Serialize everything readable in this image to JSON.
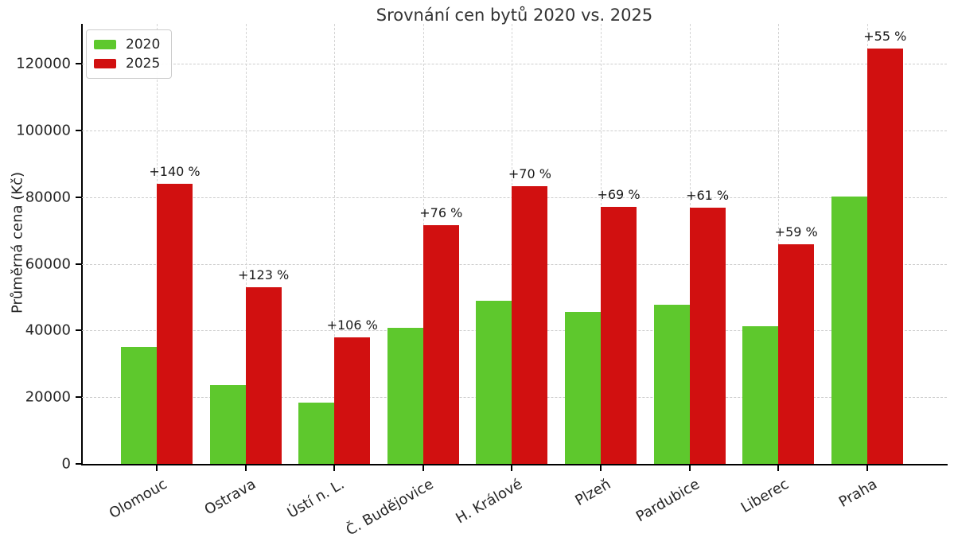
{
  "chart_data": {
    "type": "bar",
    "title": "Srovnání cen bytů 2020 vs. 2025",
    "ylabel": "Průměrná cena (Kč)",
    "xlabel": "",
    "categories": [
      "Olomouc",
      "Ostrava",
      "Ústí n. L.",
      "Č. Budějovice",
      "H. Králové",
      "Plzeň",
      "Pardubice",
      "Liberec",
      "Praha"
    ],
    "series": [
      {
        "name": "2020",
        "color": "#5ec82d",
        "values": [
          35000,
          23700,
          18400,
          40700,
          49000,
          45600,
          47700,
          41400,
          80300
        ]
      },
      {
        "name": "2025",
        "color": "#d11010",
        "values": [
          84000,
          52900,
          37900,
          71600,
          83300,
          77000,
          76800,
          65800,
          124500
        ]
      }
    ],
    "annotations": {
      "series": "2025",
      "labels": [
        "+140 %",
        "+123 %",
        "+106 %",
        "+76 %",
        "+70 %",
        "+69 %",
        "+61 %",
        "+59 %",
        "+55 %"
      ]
    },
    "ylim": [
      0,
      132000
    ],
    "yticks": [
      0,
      20000,
      40000,
      60000,
      80000,
      100000,
      120000
    ],
    "ytick_labels": [
      "0",
      "20000",
      "40000",
      "60000",
      "80000",
      "100000",
      "120000"
    ],
    "grid": "dashed-both",
    "legend_position": "upper-left",
    "xtick_rotation_deg": 30
  },
  "styles": {
    "background": "#ffffff",
    "text_color": "#262626",
    "grid_color": "#cdcdcd",
    "spine_color": "#000000",
    "legend_border": "#cccccc"
  }
}
